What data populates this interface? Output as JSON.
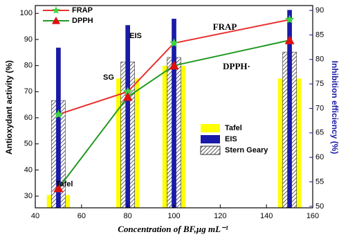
{
  "chart_data": {
    "type": "bar_line",
    "x_label": "Concentration of BF,µg mL⁻¹",
    "y_label": "Antioxydant activity (%)",
    "y2_label": "Inhibition efficiency (%)",
    "xlim": [
      40,
      160
    ],
    "xticks": [
      40,
      60,
      80,
      100,
      120,
      140,
      160
    ],
    "ylim": [
      25.5,
      103
    ],
    "yticks": [
      30,
      40,
      50,
      60,
      70,
      80,
      90,
      100
    ],
    "y2lim": [
      49.7,
      91
    ],
    "y2ticks": [
      50,
      55,
      60,
      65,
      70,
      75,
      80,
      85,
      90
    ],
    "x": [
      50,
      80,
      100,
      150
    ],
    "series": [
      {
        "name": "FRAP",
        "kind": "line",
        "color": "#e8312f",
        "marker_color": "#3dd63d",
        "marker": "star",
        "values": [
          61.3,
          70,
          88.6,
          97.6
        ]
      },
      {
        "name": "DPPH",
        "kind": "line",
        "color": "#229922",
        "marker_color": "#e01010",
        "marker": "triangle",
        "values": [
          33,
          68,
          80,
          89.7
        ]
      },
      {
        "name": "Tafel",
        "kind": "bar",
        "axis": "y2",
        "color": "#ffff00",
        "legend_text_color": "#ee00ee",
        "width": 10,
        "values": [
          52.3,
          76.1,
          78.7,
          76.1
        ]
      },
      {
        "name": "Stern Geary",
        "kind": "bar",
        "axis": "y2",
        "color": "hatch",
        "legend_text_color": "#ff8c00",
        "width": 6,
        "values": [
          71.6,
          79.5,
          80.4,
          81.5
        ]
      },
      {
        "name": "EIS",
        "kind": "bar",
        "axis": "y2",
        "color": "#1a1aa8",
        "legend_text_color": "#1a1acc",
        "width": 2,
        "values": [
          82.4,
          87,
          88.3,
          90.1
        ]
      }
    ],
    "annotations": [
      {
        "text": "FRAP",
        "color": "#e01010"
      },
      {
        "text": "DPPH·",
        "color": "#229922"
      },
      {
        "text": "EIS",
        "color": "#1a1aa8"
      },
      {
        "text": "SG",
        "color": "#000000"
      },
      {
        "text": "Tafel",
        "color": "#ee00ee"
      }
    ]
  }
}
